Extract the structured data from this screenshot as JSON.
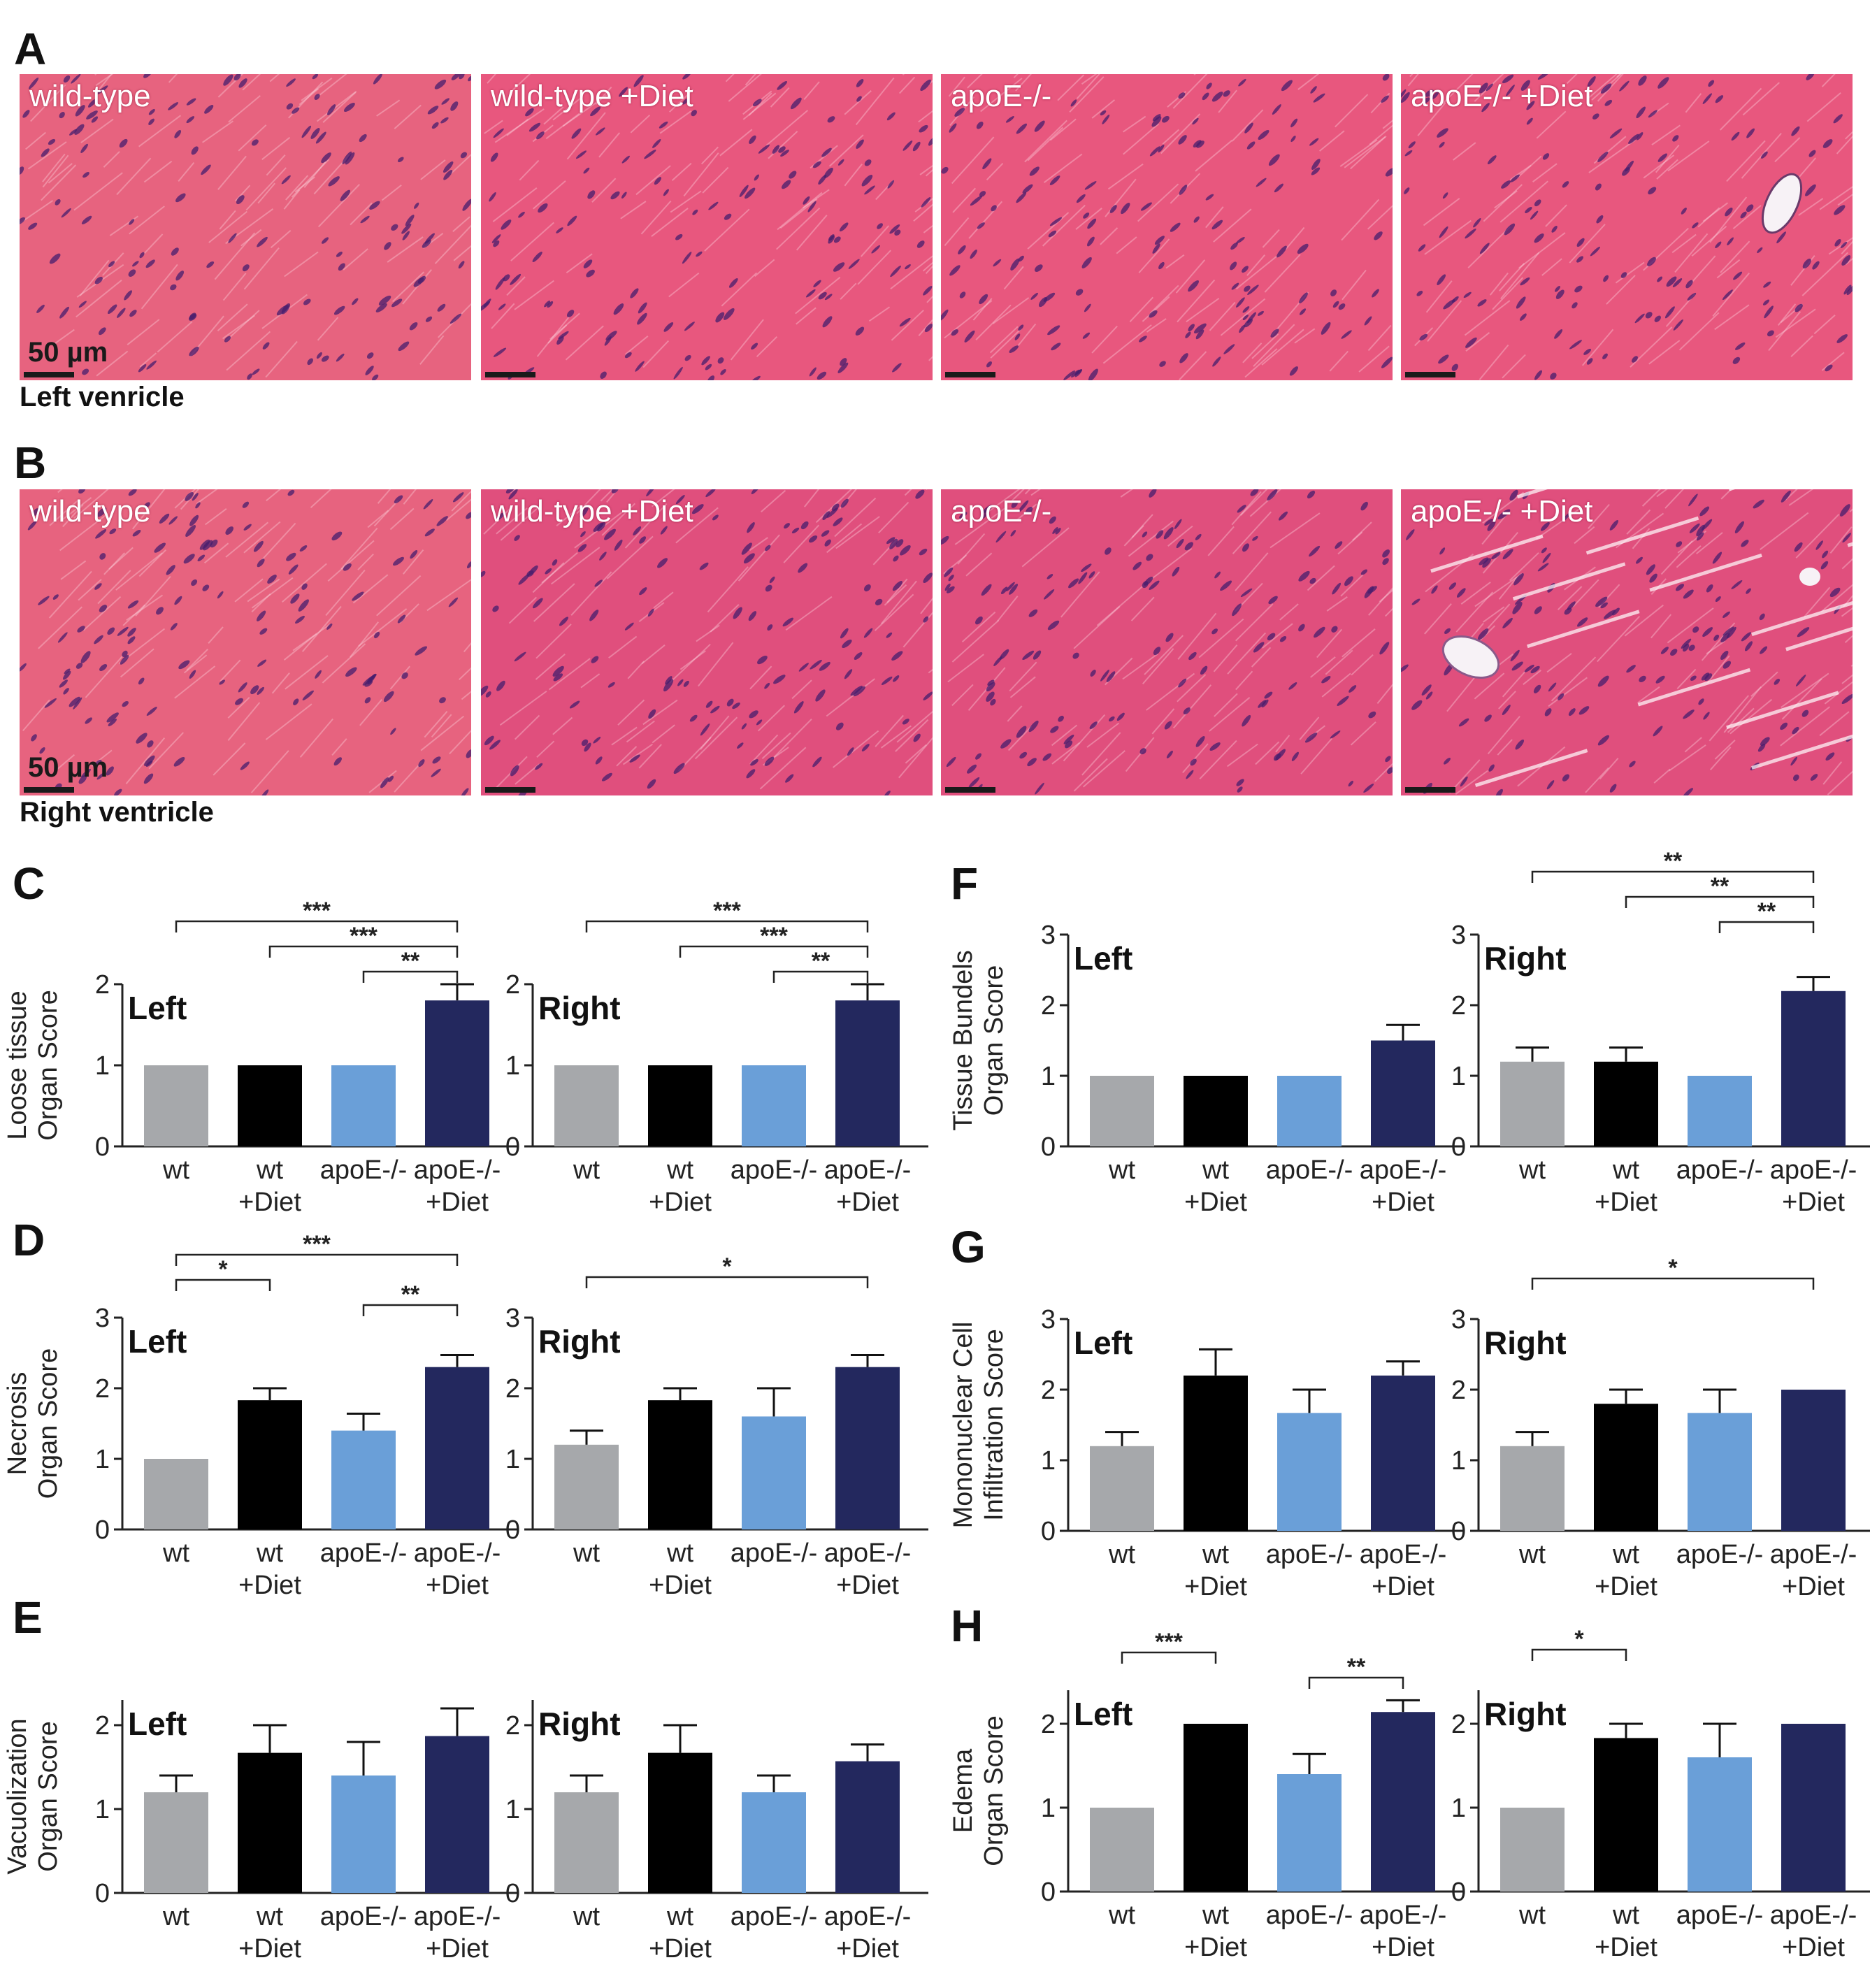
{
  "panel_letters": [
    "A",
    "B",
    "C",
    "D",
    "E",
    "F",
    "G",
    "H"
  ],
  "histology": {
    "groups": [
      "wild-type",
      "wild-type +Diet",
      "apoE-/-",
      "apoE-/- +Diet"
    ],
    "scale_bar": "50 µm",
    "rows": [
      {
        "letter": "A",
        "label": "Left venricle",
        "tint": "#e8577e"
      },
      {
        "letter": "B",
        "label": "Right ventricle",
        "tint": "#e04f7d"
      }
    ]
  },
  "colors": {
    "wt": "#a6a8ab",
    "wt_diet": "#000000",
    "apoe": "#6a9fd8",
    "apoe_diet": "#23285e"
  },
  "chart_data": [
    {
      "panel": "C",
      "side": "left",
      "type": "bar",
      "title": "Left",
      "ylabel": [
        "Loose tissue",
        "Organ Score"
      ],
      "categories": [
        [
          "wt"
        ],
        [
          "wt",
          "+Diet"
        ],
        [
          "apoE-/-"
        ],
        [
          "apoE-/-",
          "+Diet"
        ]
      ],
      "values": [
        1,
        1,
        1,
        1.8
      ],
      "errors": [
        0,
        0,
        0,
        0.2
      ],
      "ylim": [
        0,
        2
      ],
      "yticks": [
        0,
        1,
        2
      ],
      "significance": [
        {
          "from": 0,
          "to": 3,
          "label": "***"
        },
        {
          "from": 1,
          "to": 3,
          "label": "***"
        },
        {
          "from": 2,
          "to": 3,
          "label": "**"
        }
      ]
    },
    {
      "panel": "C",
      "side": "right",
      "type": "bar",
      "title": "Right",
      "categories": [
        [
          "wt"
        ],
        [
          "wt",
          "+Diet"
        ],
        [
          "apoE-/-"
        ],
        [
          "apoE-/-",
          "+Diet"
        ]
      ],
      "values": [
        1,
        1,
        1,
        1.8
      ],
      "errors": [
        0,
        0,
        0,
        0.2
      ],
      "ylim": [
        0,
        2
      ],
      "yticks": [
        0,
        1,
        2
      ],
      "significance": [
        {
          "from": 0,
          "to": 3,
          "label": "***"
        },
        {
          "from": 1,
          "to": 3,
          "label": "***"
        },
        {
          "from": 2,
          "to": 3,
          "label": "**"
        }
      ]
    },
    {
      "panel": "D",
      "side": "left",
      "type": "bar",
      "title": "Left",
      "ylabel": [
        "Necrosis",
        "Organ Score"
      ],
      "categories": [
        [
          "wt"
        ],
        [
          "wt",
          "+Diet"
        ],
        [
          "apoE-/-"
        ],
        [
          "apoE-/-",
          "+Diet"
        ]
      ],
      "values": [
        1,
        1.83,
        1.4,
        2.3
      ],
      "errors": [
        0,
        0.17,
        0.24,
        0.17
      ],
      "ylim": [
        0,
        3
      ],
      "yticks": [
        0,
        1,
        2,
        3
      ],
      "significance": [
        {
          "from": 0,
          "to": 3,
          "label": "***"
        },
        {
          "from": 0,
          "to": 1,
          "label": "*"
        },
        {
          "from": 2,
          "to": 3,
          "label": "**"
        }
      ]
    },
    {
      "panel": "D",
      "side": "right",
      "type": "bar",
      "title": "Right",
      "categories": [
        [
          "wt"
        ],
        [
          "wt",
          "+Diet"
        ],
        [
          "apoE-/-"
        ],
        [
          "apoE-/-",
          "+Diet"
        ]
      ],
      "values": [
        1.2,
        1.83,
        1.6,
        2.3
      ],
      "errors": [
        0.2,
        0.17,
        0.4,
        0.17
      ],
      "ylim": [
        0,
        3
      ],
      "yticks": [
        0,
        1,
        2,
        3
      ],
      "significance": [
        {
          "from": 0,
          "to": 3,
          "label": "*"
        }
      ]
    },
    {
      "panel": "E",
      "side": "left",
      "type": "bar",
      "title": "Left",
      "ylabel": [
        "Vacuolization",
        "Organ Score"
      ],
      "categories": [
        [
          "wt"
        ],
        [
          "wt",
          "+Diet"
        ],
        [
          "apoE-/-"
        ],
        [
          "apoE-/-",
          "+Diet"
        ]
      ],
      "values": [
        1.2,
        1.67,
        1.4,
        1.87
      ],
      "errors": [
        0.2,
        0.33,
        0.4,
        0.33
      ],
      "ylim": [
        0,
        2.3
      ],
      "yticks": [
        0,
        1,
        2
      ],
      "significance": []
    },
    {
      "panel": "E",
      "side": "right",
      "type": "bar",
      "title": "Right",
      "categories": [
        [
          "wt"
        ],
        [
          "wt",
          "+Diet"
        ],
        [
          "apoE-/-"
        ],
        [
          "apoE-/-",
          "+Diet"
        ]
      ],
      "values": [
        1.2,
        1.67,
        1.2,
        1.57
      ],
      "errors": [
        0.2,
        0.33,
        0.2,
        0.2
      ],
      "ylim": [
        0,
        2.3
      ],
      "yticks": [
        0,
        1,
        2
      ],
      "significance": []
    },
    {
      "panel": "F",
      "side": "left",
      "type": "bar",
      "title": "Left",
      "ylabel": [
        "Tissue Bundels",
        "Organ Score"
      ],
      "categories": [
        [
          "wt"
        ],
        [
          "wt",
          "+Diet"
        ],
        [
          "apoE-/-"
        ],
        [
          "apoE-/-",
          "+Diet"
        ]
      ],
      "values": [
        1,
        1,
        1,
        1.5
      ],
      "errors": [
        0,
        0,
        0,
        0.22
      ],
      "ylim": [
        0,
        3
      ],
      "yticks": [
        0,
        1,
        2,
        3
      ],
      "significance": []
    },
    {
      "panel": "F",
      "side": "right",
      "type": "bar",
      "title": "Right",
      "categories": [
        [
          "wt"
        ],
        [
          "wt",
          "+Diet"
        ],
        [
          "apoE-/-"
        ],
        [
          "apoE-/-",
          "+Diet"
        ]
      ],
      "values": [
        1.2,
        1.2,
        1,
        2.2
      ],
      "errors": [
        0.2,
        0.2,
        0,
        0.2
      ],
      "ylim": [
        0,
        3
      ],
      "yticks": [
        0,
        1,
        2,
        3
      ],
      "significance": [
        {
          "from": 0,
          "to": 3,
          "label": "**"
        },
        {
          "from": 1,
          "to": 3,
          "label": "**"
        },
        {
          "from": 2,
          "to": 3,
          "label": "**"
        }
      ]
    },
    {
      "panel": "G",
      "side": "left",
      "type": "bar",
      "title": "Left",
      "ylabel": [
        "Mononuclear Cell",
        "Infiltration Score"
      ],
      "categories": [
        [
          "wt"
        ],
        [
          "wt",
          "+Diet"
        ],
        [
          "apoE-/-"
        ],
        [
          "apoE-/-",
          "+Diet"
        ]
      ],
      "values": [
        1.2,
        2.2,
        1.67,
        2.2
      ],
      "errors": [
        0.2,
        0.37,
        0.33,
        0.2
      ],
      "ylim": [
        0,
        3
      ],
      "yticks": [
        0,
        1,
        2,
        3
      ],
      "significance": []
    },
    {
      "panel": "G",
      "side": "right",
      "type": "bar",
      "title": "Right",
      "categories": [
        [
          "wt"
        ],
        [
          "wt",
          "+Diet"
        ],
        [
          "apoE-/-"
        ],
        [
          "apoE-/-",
          "+Diet"
        ]
      ],
      "values": [
        1.2,
        1.8,
        1.67,
        2
      ],
      "errors": [
        0.2,
        0.2,
        0.33,
        0
      ],
      "ylim": [
        0,
        3
      ],
      "yticks": [
        0,
        1,
        2,
        3
      ],
      "significance": [
        {
          "from": 0,
          "to": 3,
          "label": "*"
        }
      ]
    },
    {
      "panel": "H",
      "side": "left",
      "type": "bar",
      "title": "Left",
      "ylabel": [
        "Edema",
        "Organ Score"
      ],
      "categories": [
        [
          "wt"
        ],
        [
          "wt",
          "+Diet"
        ],
        [
          "apoE-/-"
        ],
        [
          "apoE-/-",
          "+Diet"
        ]
      ],
      "values": [
        1,
        2,
        1.4,
        2.14
      ],
      "errors": [
        0,
        0,
        0.24,
        0.14
      ],
      "ylim": [
        0,
        2.4
      ],
      "yticks": [
        0,
        1,
        2
      ],
      "significance": [
        {
          "from": 0,
          "to": 1,
          "label": "***"
        },
        {
          "from": 2,
          "to": 3,
          "label": "**"
        }
      ]
    },
    {
      "panel": "H",
      "side": "right",
      "type": "bar",
      "title": "Right",
      "categories": [
        [
          "wt"
        ],
        [
          "wt",
          "+Diet"
        ],
        [
          "apoE-/-"
        ],
        [
          "apoE-/-",
          "+Diet"
        ]
      ],
      "values": [
        1,
        1.83,
        1.6,
        2
      ],
      "errors": [
        0,
        0.17,
        0.4,
        0
      ],
      "ylim": [
        0,
        2.4
      ],
      "yticks": [
        0,
        1,
        2
      ],
      "significance": [
        {
          "from": 0,
          "to": 1,
          "label": "*"
        }
      ]
    }
  ]
}
